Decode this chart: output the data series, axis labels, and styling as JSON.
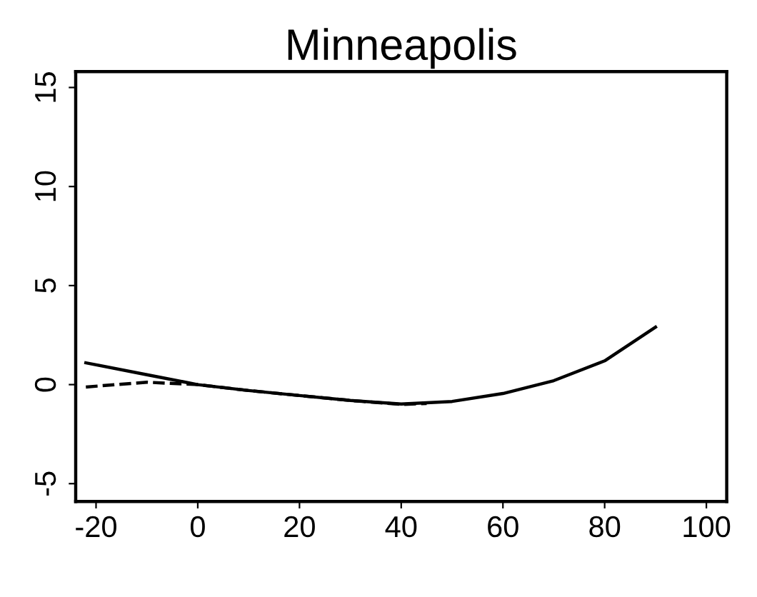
{
  "chart_data": {
    "type": "line",
    "title": "Minneapolis",
    "xlim": [
      -24,
      104
    ],
    "ylim": [
      -5.9,
      15.8
    ],
    "xticks": [
      -20,
      0,
      20,
      40,
      60,
      80,
      100
    ],
    "yticks": [
      -5,
      0,
      5,
      10,
      15
    ],
    "grid": false,
    "legend": false,
    "series": [
      {
        "color": "#000000",
        "line_style": "solid",
        "x": [
          -22,
          -10,
          0,
          10,
          20,
          30,
          40,
          50,
          60,
          70,
          80,
          90
        ],
        "values": [
          1.1,
          0.5,
          0.0,
          -0.3,
          -0.55,
          -0.8,
          -0.98,
          -0.85,
          -0.45,
          0.2,
          1.2,
          2.9
        ]
      },
      {
        "color": "#000000",
        "line_style": "dashed",
        "x": [
          -22,
          -10,
          0,
          10,
          20,
          30,
          40,
          45
        ],
        "values": [
          -0.12,
          0.12,
          0.0,
          -0.3,
          -0.55,
          -0.8,
          -1.0,
          -0.95
        ]
      }
    ]
  }
}
